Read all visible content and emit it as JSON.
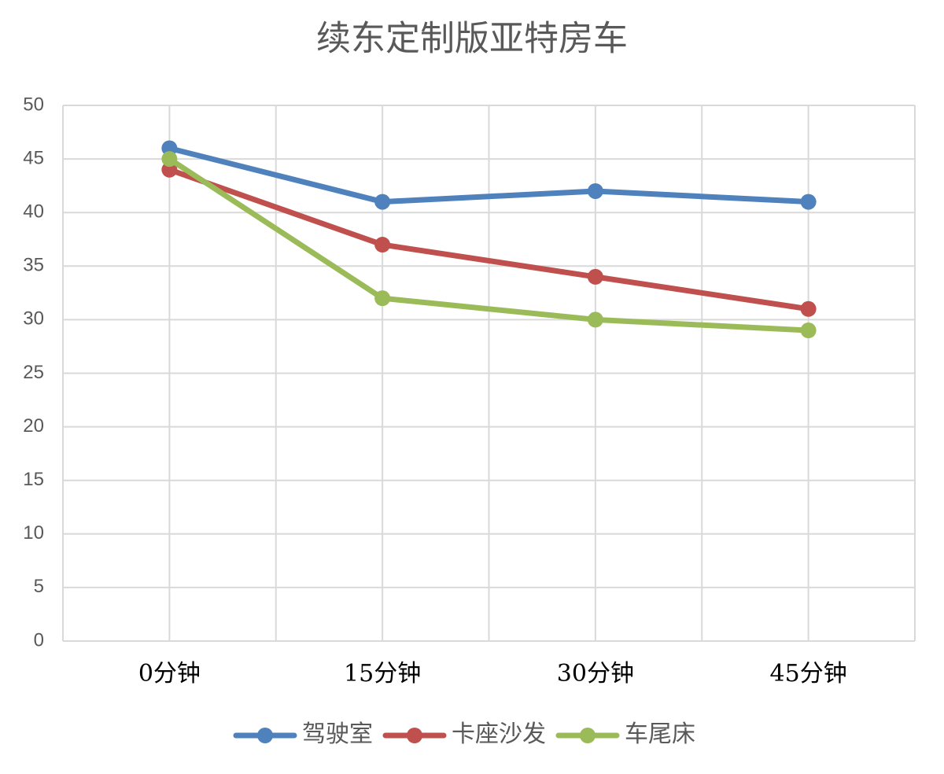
{
  "chart_data": {
    "type": "line",
    "title": "续东定制版亚特房车",
    "categories": [
      "0分钟",
      "15分钟",
      "30分钟",
      "45分钟"
    ],
    "series": [
      {
        "name": "驾驶室",
        "color": "#4f81bd",
        "values": [
          46,
          41,
          42,
          41
        ]
      },
      {
        "name": "卡座沙发",
        "color": "#c0504d",
        "values": [
          44,
          37,
          34,
          31
        ]
      },
      {
        "name": "车尾床",
        "color": "#9bbb59",
        "values": [
          45,
          32,
          30,
          29
        ]
      }
    ],
    "ylim": [
      0,
      50
    ],
    "yticks": [
      0,
      5,
      10,
      15,
      20,
      25,
      30,
      35,
      40,
      45,
      50
    ],
    "grid": true,
    "legend": "bottom"
  }
}
